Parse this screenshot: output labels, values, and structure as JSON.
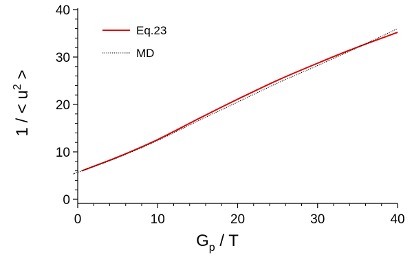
{
  "chart_data": {
    "type": "line",
    "xlim": [
      0,
      40
    ],
    "ylim": [
      0,
      40
    ],
    "x_ticks": [
      0,
      10,
      20,
      30,
      40
    ],
    "y_ticks": [
      0,
      10,
      20,
      30,
      40
    ],
    "xlabel": {
      "main": "G",
      "sub": "p",
      "rest": " / T"
    },
    "ylabel": {
      "prefix": "1 / < u",
      "sup": "2",
      "suffix": " >"
    },
    "legend_position": "top-left",
    "series": [
      {
        "name": "Eq.23",
        "color": "#e00000",
        "style": "solid",
        "x": [
          0.5,
          5,
          10,
          15,
          20,
          25,
          30,
          35,
          40
        ],
        "y": [
          6.0,
          8.9,
          12.6,
          16.9,
          21.1,
          25.1,
          28.7,
          32.1,
          35.2
        ]
      },
      {
        "name": "MD",
        "color": "#000000",
        "style": "dotted",
        "x": [
          -0.5,
          0,
          5,
          10,
          15,
          20,
          25,
          30,
          35,
          40
        ],
        "y": [
          5.4,
          5.7,
          8.8,
          12.4,
          16.5,
          20.5,
          24.5,
          28.2,
          32.0,
          36.0
        ]
      }
    ]
  }
}
